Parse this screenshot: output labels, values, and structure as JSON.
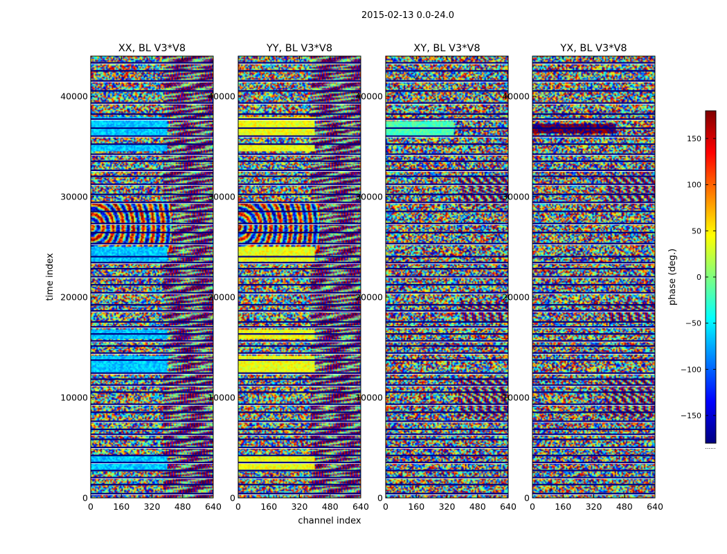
{
  "chart_data": {
    "type": "heatmap",
    "title": "2015-02-13 0.0-24.0",
    "xlabel": "channel index",
    "ylabel": "time index",
    "xlim": [
      0,
      640
    ],
    "ylim": [
      0,
      44000
    ],
    "x_ticks": [
      0,
      160,
      320,
      480,
      640
    ],
    "y_ticks": [
      0,
      10000,
      20000,
      30000,
      40000
    ],
    "panels": [
      {
        "title": "XX, BL V3*V8",
        "mode": "xx"
      },
      {
        "title": "YY, BL V3*V8",
        "mode": "yy"
      },
      {
        "title": "XY, BL V3*V8",
        "mode": "xy"
      },
      {
        "title": "YX, BL V3*V8",
        "mode": "yx"
      }
    ],
    "colorbar": {
      "label": "phase (deg.)",
      "range": [
        -180,
        180
      ],
      "ticks": [
        150,
        100,
        50,
        0,
        -50,
        -100,
        -150
      ],
      "tick_labels": [
        "150",
        "100",
        "50",
        "0",
        "−50",
        "−100",
        "−150"
      ],
      "colormap": "jet"
    },
    "colorbar_footer": "......",
    "flagged_rows_time_index": [
      400,
      1300,
      2000,
      2700,
      3500,
      4200,
      5000,
      5800,
      6300,
      6800,
      7600,
      8500,
      9300,
      10500,
      11200,
      11800,
      12400,
      13700,
      14400,
      15100,
      15600,
      16300,
      17000,
      17500,
      18600,
      19200,
      20400,
      21200,
      22000,
      22800,
      23400,
      24000,
      25300,
      26400,
      27300,
      28500,
      29400,
      30200,
      31200,
      32000,
      32600,
      33500,
      34200,
      35200,
      36000,
      36800,
      37700,
      38200,
      39300,
      40500,
      41500,
      42500,
      43300
    ]
  }
}
